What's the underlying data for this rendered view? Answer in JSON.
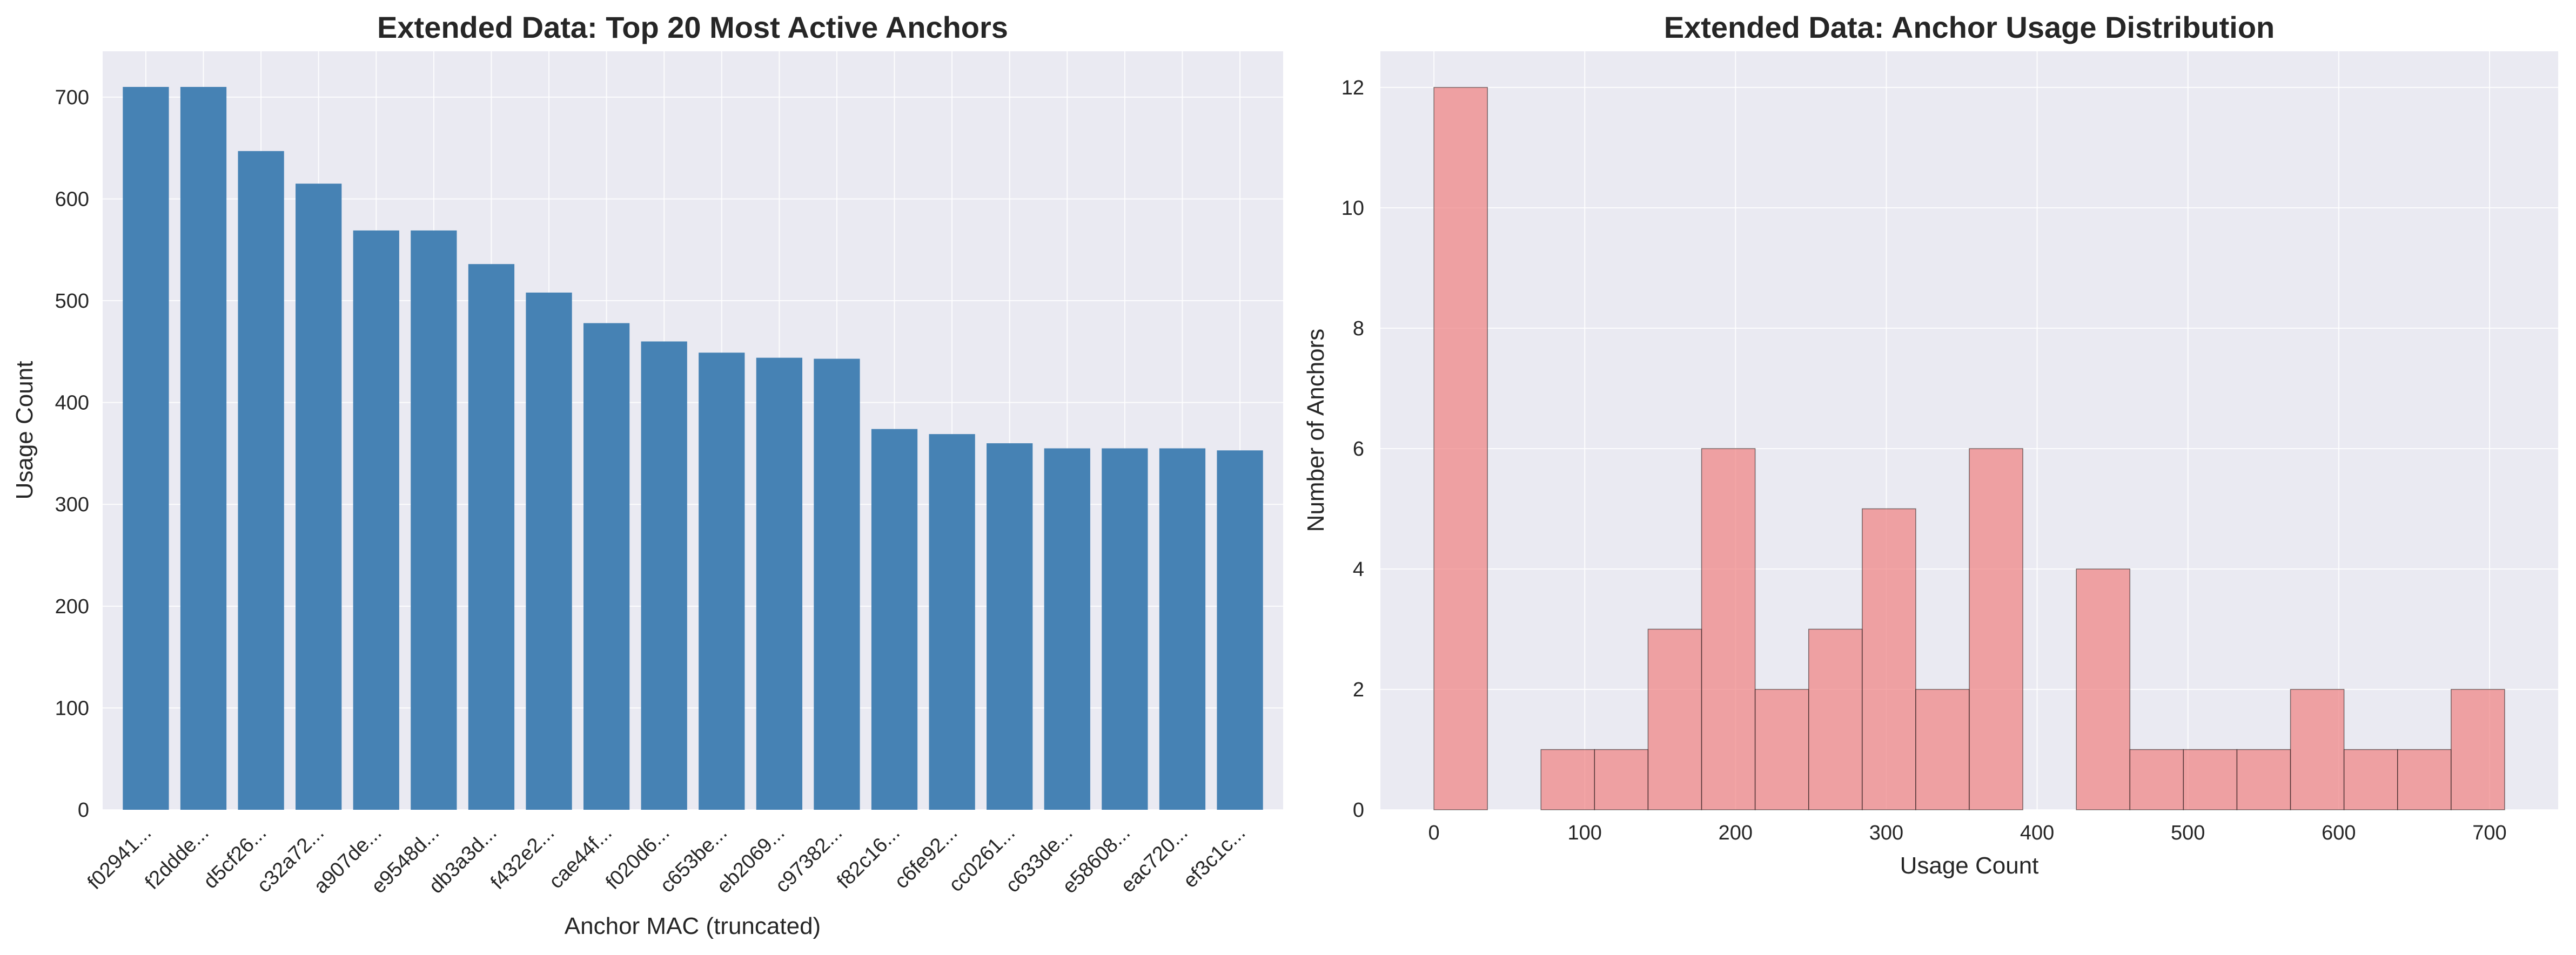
{
  "chart_data": [
    {
      "type": "bar",
      "title": "Extended Data: Top 20 Most Active Anchors",
      "xlabel": "Anchor MAC (truncated)",
      "ylabel": "Usage Count",
      "categories": [
        "f02941...",
        "f2ddde...",
        "d5cf26...",
        "c32a72...",
        "a907de...",
        "e9548d...",
        "db3a3d...",
        "f432e2...",
        "cae44f...",
        "f020d6...",
        "c653be...",
        "eb2069...",
        "c97382...",
        "f82c16...",
        "c6fe92...",
        "cc0261...",
        "c633de...",
        "e58608...",
        "eac720...",
        "ef3c1c..."
      ],
      "values": [
        710,
        710,
        647,
        615,
        569,
        569,
        536,
        508,
        478,
        460,
        449,
        444,
        443,
        374,
        369,
        360,
        355,
        355,
        355,
        353
      ],
      "ylim": [
        0,
        745
      ],
      "yticks": [
        0,
        100,
        200,
        300,
        400,
        500,
        600,
        700
      ],
      "grid": true,
      "color": "#4682b4"
    },
    {
      "type": "bar",
      "title": "Extended Data: Anchor Usage Distribution",
      "xlabel": "Usage Count",
      "ylabel": "Number of Anchors",
      "bin_edges": [
        0,
        35.5,
        71,
        106.5,
        142,
        177.5,
        213,
        248.5,
        284,
        319.5,
        355,
        390.5,
        426,
        461.5,
        497,
        532.5,
        568,
        603.5,
        639,
        674.5,
        710
      ],
      "counts": [
        12,
        0,
        1,
        1,
        3,
        6,
        2,
        3,
        5,
        2,
        6,
        0,
        4,
        1,
        1,
        1,
        2,
        1,
        1,
        2
      ],
      "xlim": [
        -35.5,
        745.5
      ],
      "ylim": [
        0,
        12.6
      ],
      "xticks": [
        0,
        100,
        200,
        300,
        400,
        500,
        600,
        700
      ],
      "yticks": [
        0,
        2,
        4,
        6,
        8,
        10,
        12
      ],
      "grid": true,
      "color": "#f08080"
    }
  ]
}
